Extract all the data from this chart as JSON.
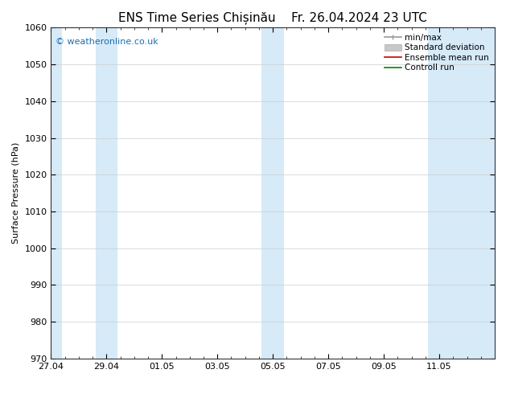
{
  "title": "ENS Time Series Chișinău",
  "title2": "Fr. 26.04.2024 23 UTC",
  "ylabel": "Surface Pressure (hPa)",
  "ylim": [
    970,
    1060
  ],
  "yticks": [
    970,
    980,
    990,
    1000,
    1010,
    1020,
    1030,
    1040,
    1050,
    1060
  ],
  "xlim_start": 0,
  "xlim_end": 16,
  "xtick_labels": [
    "27.04",
    "29.04",
    "01.05",
    "03.05",
    "05.05",
    "07.05",
    "09.05",
    "11.05"
  ],
  "xtick_positions": [
    0,
    2,
    4,
    6,
    8,
    10,
    12,
    14
  ],
  "shaded_bands": [
    {
      "x_start": 0.0,
      "x_end": 0.4,
      "color": "#d6eaf8"
    },
    {
      "x_start": 1.6,
      "x_end": 2.4,
      "color": "#d6eaf8"
    },
    {
      "x_start": 7.6,
      "x_end": 8.0,
      "color": "#d6eaf8"
    },
    {
      "x_start": 8.0,
      "x_end": 8.4,
      "color": "#d6eaf8"
    },
    {
      "x_start": 13.6,
      "x_end": 16.0,
      "color": "#d6eaf8"
    }
  ],
  "background_color": "#ffffff",
  "plot_bg_color": "#ffffff",
  "grid_color": "#cccccc",
  "legend_items": [
    {
      "label": "min/max",
      "color": "#999999",
      "lw": 1.2
    },
    {
      "label": "Standard deviation",
      "color": "#c8c8c8",
      "lw": 5
    },
    {
      "label": "Ensemble mean run",
      "color": "#cc0000",
      "lw": 1.2
    },
    {
      "label": "Controll run",
      "color": "#008800",
      "lw": 1.2
    }
  ],
  "watermark": "© weatheronline.co.uk",
  "watermark_color": "#1a6faf",
  "title_fontsize": 11,
  "ylabel_fontsize": 8,
  "tick_fontsize": 8,
  "legend_fontsize": 7.5
}
